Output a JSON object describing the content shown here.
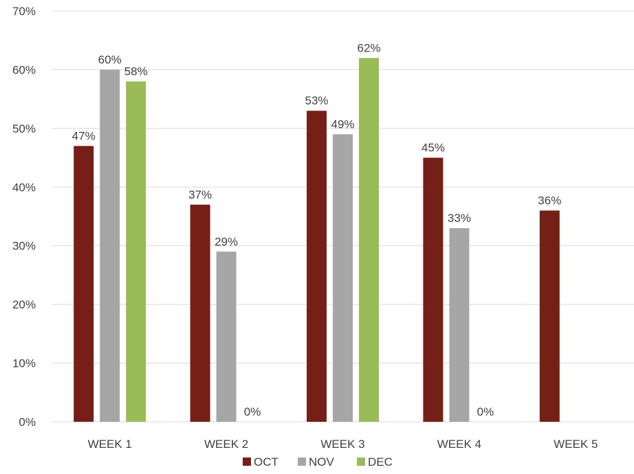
{
  "chart_data": {
    "type": "bar",
    "categories": [
      "WEEK 1",
      "WEEK 2",
      "WEEK 3",
      "WEEK 4",
      "WEEK 5"
    ],
    "series": [
      {
        "name": "OCT",
        "color": "#761f16",
        "values": [
          47,
          37,
          53,
          45,
          36
        ],
        "labels": [
          "47%",
          "37%",
          "53%",
          "45%",
          "36%"
        ]
      },
      {
        "name": "NOV",
        "color": "#a6a6a6",
        "values": [
          60,
          29,
          49,
          33,
          null
        ],
        "labels": [
          "60%",
          "29%",
          "49%",
          "33%",
          ""
        ]
      },
      {
        "name": "DEC",
        "color": "#9bbb59",
        "values": [
          58,
          0,
          62,
          0,
          null
        ],
        "labels": [
          "58%",
          "0%",
          "62%",
          "0%",
          ""
        ]
      }
    ],
    "y_ticks": [
      "0%",
      "10%",
      "20%",
      "30%",
      "40%",
      "50%",
      "60%",
      "70%"
    ],
    "ylim": [
      0,
      70
    ],
    "y_unit": "percent",
    "grid": true,
    "gridline_color": "#d9d9d9",
    "legend_position": "bottom"
  }
}
